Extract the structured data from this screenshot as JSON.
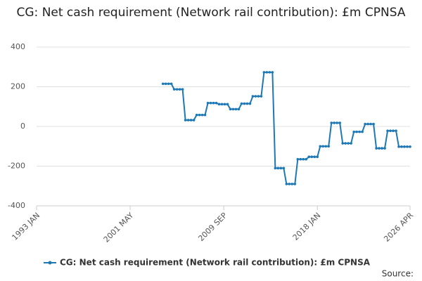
{
  "chart_data": {
    "type": "line",
    "title": "CG: Net cash requirement (Network rail contribution): £m CPNSA",
    "source": "Source:",
    "x": [
      "2004 APR",
      "2004 JUL",
      "2004 OCT",
      "2005 JAN",
      "2005 APR",
      "2005 JUL",
      "2005 OCT",
      "2006 JAN",
      "2006 APR",
      "2006 JUL",
      "2006 OCT",
      "2007 JAN",
      "2007 APR",
      "2007 JUL",
      "2007 OCT",
      "2008 JAN",
      "2008 APR",
      "2008 JUL",
      "2008 OCT",
      "2009 JAN",
      "2009 APR",
      "2009 JUL",
      "2009 OCT",
      "2010 JAN",
      "2010 APR",
      "2010 JUL",
      "2010 OCT",
      "2011 JAN",
      "2011 APR",
      "2011 JUL",
      "2011 OCT",
      "2012 JAN",
      "2012 APR",
      "2012 JUL",
      "2012 OCT",
      "2013 JAN",
      "2013 APR",
      "2013 JUL",
      "2013 OCT",
      "2014 JAN",
      "2014 APR",
      "2014 JUL",
      "2014 OCT",
      "2015 JAN",
      "2015 APR",
      "2015 JUL",
      "2015 OCT",
      "2016 JAN",
      "2016 APR",
      "2016 JUL",
      "2016 OCT",
      "2017 JAN",
      "2017 APR",
      "2017 JUL",
      "2017 OCT",
      "2018 JAN",
      "2018 APR",
      "2018 JUL",
      "2018 OCT",
      "2019 JAN",
      "2019 APR",
      "2019 JUL",
      "2019 OCT",
      "2020 JAN",
      "2020 APR",
      "2020 JUL",
      "2020 OCT",
      "2021 JAN",
      "2021 APR",
      "2021 JUL",
      "2021 OCT",
      "2022 JAN",
      "2022 APR",
      "2022 JUL",
      "2022 OCT",
      "2023 JAN",
      "2023 APR",
      "2023 JUL",
      "2023 OCT",
      "2024 JAN",
      "2024 APR",
      "2024 JUL",
      "2024 OCT",
      "2025 JAN",
      "2025 APR",
      "2025 JUL",
      "2025 OCT",
      "2026 JAN",
      "2026 APR"
    ],
    "series": [
      {
        "name": "CG: Net cash requirement (Network rail contribution): £m CPNSA",
        "color": "#1f78b4",
        "values": [
          215,
          215,
          215,
          215,
          187,
          187,
          187,
          187,
          32,
          32,
          32,
          32,
          58,
          58,
          58,
          58,
          118,
          118,
          118,
          118,
          112,
          112,
          112,
          112,
          87,
          87,
          87,
          87,
          115,
          115,
          115,
          115,
          152,
          152,
          152,
          152,
          273,
          273,
          273,
          273,
          -210,
          -210,
          -210,
          -210,
          -290,
          -290,
          -290,
          -290,
          -165,
          -165,
          -165,
          -165,
          -153,
          -153,
          -153,
          -153,
          -100,
          -100,
          -100,
          -100,
          18,
          18,
          18,
          18,
          -85,
          -85,
          -85,
          -85,
          -27,
          -27,
          -27,
          -27,
          12,
          12,
          12,
          12,
          -110,
          -110,
          -110,
          -110,
          -22,
          -22,
          -22,
          -22,
          -102,
          -102,
          -102,
          -102,
          -102
        ]
      }
    ],
    "xlim": [
      "1993 JAN",
      "2026 APR"
    ],
    "xticks": [
      "1993 JAN",
      "2001 MAY",
      "2009 SEP",
      "2018 JAN",
      "2026 APR"
    ],
    "ylim": [
      -400,
      400
    ],
    "yticks": [
      400,
      200,
      0,
      -200,
      -400
    ],
    "grid": true
  }
}
